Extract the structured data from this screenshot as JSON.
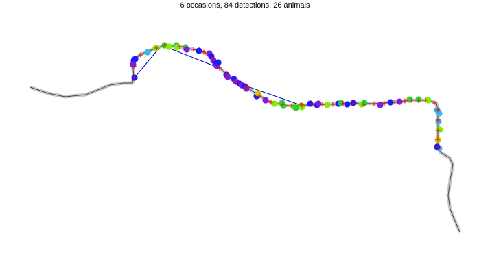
{
  "title": "6 occasions, 84 detections, 26 animals",
  "colors": {
    "background": "#ffffff",
    "trap_line_outer": "#c8c8c8",
    "trap_line_inner": "#4a4a4a",
    "trap_marker": "#ff0000",
    "movement_line": "#0000cc",
    "occasion_colors": [
      "#1a1aff",
      "#7b1fd8",
      "#33cc33",
      "#7ff000",
      "#33bbee",
      "#cccc00"
    ]
  }
}
